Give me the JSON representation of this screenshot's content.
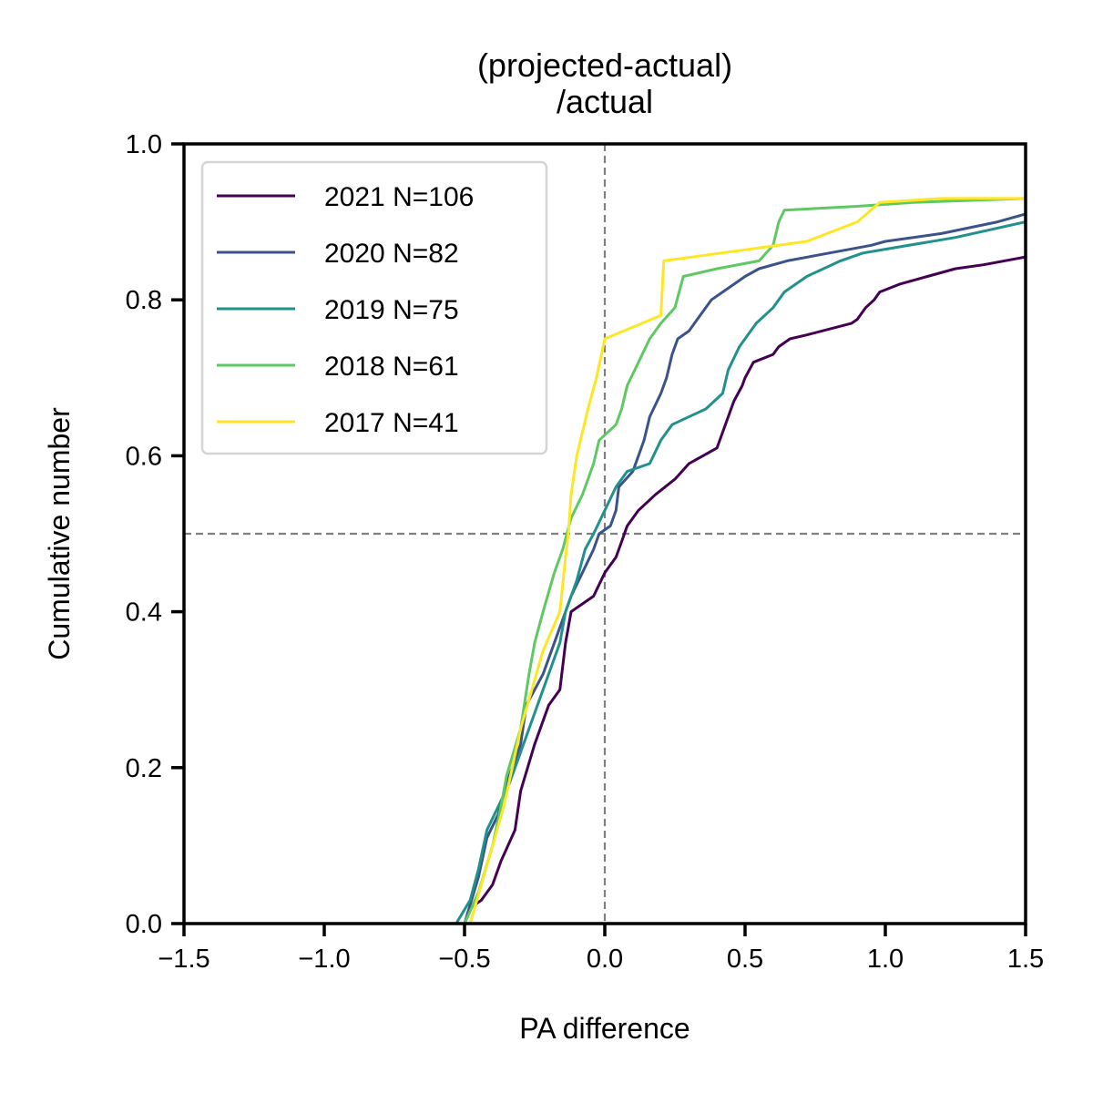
{
  "chart_data": {
    "type": "line",
    "title": "(projected-actual)\n/actual",
    "xlabel": "PA difference",
    "ylabel": "Cumulative number",
    "xlim": [
      -1.5,
      1.5
    ],
    "ylim": [
      0.0,
      1.0
    ],
    "xticks": [
      -1.5,
      -1.0,
      -0.5,
      0.0,
      0.5,
      1.0,
      1.5
    ],
    "xtick_labels": [
      "−1.5",
      "−1.0",
      "−0.5",
      "0.0",
      "0.5",
      "1.0",
      "1.5"
    ],
    "yticks": [
      0.0,
      0.2,
      0.4,
      0.6,
      0.8,
      1.0
    ],
    "ytick_labels": [
      "0.0",
      "0.2",
      "0.4",
      "0.6",
      "0.8",
      "1.0"
    ],
    "grid": false,
    "legend_position": "upper-left",
    "reference_lines": [
      {
        "axis": "x",
        "value": 0.0,
        "style": "dashed",
        "color": "#808080"
      },
      {
        "axis": "y",
        "value": 0.5,
        "style": "dashed",
        "color": "#808080"
      }
    ],
    "series": [
      {
        "name": "2021 N=106",
        "color": "#440154",
        "points": [
          [
            -0.5,
            0.0
          ],
          [
            -0.48,
            0.02
          ],
          [
            -0.44,
            0.03
          ],
          [
            -0.4,
            0.05
          ],
          [
            -0.37,
            0.08
          ],
          [
            -0.32,
            0.12
          ],
          [
            -0.3,
            0.17
          ],
          [
            -0.25,
            0.23
          ],
          [
            -0.2,
            0.28
          ],
          [
            -0.16,
            0.3
          ],
          [
            -0.14,
            0.36
          ],
          [
            -0.12,
            0.4
          ],
          [
            -0.08,
            0.41
          ],
          [
            -0.04,
            0.42
          ],
          [
            0.0,
            0.45
          ],
          [
            0.04,
            0.47
          ],
          [
            0.06,
            0.49
          ],
          [
            0.08,
            0.51
          ],
          [
            0.12,
            0.53
          ],
          [
            0.18,
            0.55
          ],
          [
            0.25,
            0.57
          ],
          [
            0.3,
            0.59
          ],
          [
            0.35,
            0.6
          ],
          [
            0.4,
            0.61
          ],
          [
            0.43,
            0.64
          ],
          [
            0.46,
            0.67
          ],
          [
            0.49,
            0.69
          ],
          [
            0.5,
            0.7
          ],
          [
            0.53,
            0.72
          ],
          [
            0.6,
            0.73
          ],
          [
            0.62,
            0.74
          ],
          [
            0.66,
            0.75
          ],
          [
            0.72,
            0.755
          ],
          [
            0.88,
            0.77
          ],
          [
            0.9,
            0.775
          ],
          [
            0.93,
            0.79
          ],
          [
            0.96,
            0.8
          ],
          [
            0.98,
            0.81
          ],
          [
            1.05,
            0.82
          ],
          [
            1.15,
            0.83
          ],
          [
            1.25,
            0.84
          ],
          [
            1.35,
            0.845
          ],
          [
            1.5,
            0.855
          ]
        ]
      },
      {
        "name": "2020 N=82",
        "color": "#3b528b",
        "points": [
          [
            -0.5,
            0.0
          ],
          [
            -0.45,
            0.06
          ],
          [
            -0.42,
            0.11
          ],
          [
            -0.38,
            0.14
          ],
          [
            -0.35,
            0.18
          ],
          [
            -0.3,
            0.23
          ],
          [
            -0.28,
            0.28
          ],
          [
            -0.22,
            0.32
          ],
          [
            -0.18,
            0.36
          ],
          [
            -0.15,
            0.39
          ],
          [
            -0.12,
            0.42
          ],
          [
            -0.08,
            0.45
          ],
          [
            -0.04,
            0.48
          ],
          [
            -0.02,
            0.5
          ],
          [
            0.02,
            0.51
          ],
          [
            0.04,
            0.53
          ],
          [
            0.05,
            0.56
          ],
          [
            0.1,
            0.58
          ],
          [
            0.12,
            0.6
          ],
          [
            0.14,
            0.62
          ],
          [
            0.16,
            0.65
          ],
          [
            0.2,
            0.68
          ],
          [
            0.22,
            0.7
          ],
          [
            0.24,
            0.73
          ],
          [
            0.26,
            0.75
          ],
          [
            0.3,
            0.76
          ],
          [
            0.34,
            0.78
          ],
          [
            0.38,
            0.8
          ],
          [
            0.42,
            0.81
          ],
          [
            0.46,
            0.82
          ],
          [
            0.5,
            0.83
          ],
          [
            0.55,
            0.84
          ],
          [
            0.65,
            0.85
          ],
          [
            0.8,
            0.86
          ],
          [
            0.95,
            0.87
          ],
          [
            1.0,
            0.875
          ],
          [
            1.2,
            0.885
          ],
          [
            1.4,
            0.9
          ],
          [
            1.5,
            0.91
          ]
        ]
      },
      {
        "name": "2019 N=75",
        "color": "#21918c",
        "points": [
          [
            -0.53,
            0.0
          ],
          [
            -0.48,
            0.03
          ],
          [
            -0.45,
            0.07
          ],
          [
            -0.42,
            0.12
          ],
          [
            -0.38,
            0.15
          ],
          [
            -0.34,
            0.18
          ],
          [
            -0.3,
            0.22
          ],
          [
            -0.25,
            0.27
          ],
          [
            -0.22,
            0.3
          ],
          [
            -0.16,
            0.36
          ],
          [
            -0.14,
            0.4
          ],
          [
            -0.1,
            0.44
          ],
          [
            -0.07,
            0.48
          ],
          [
            -0.04,
            0.5
          ],
          [
            0.0,
            0.53
          ],
          [
            0.04,
            0.56
          ],
          [
            0.08,
            0.58
          ],
          [
            0.16,
            0.59
          ],
          [
            0.2,
            0.62
          ],
          [
            0.24,
            0.64
          ],
          [
            0.36,
            0.66
          ],
          [
            0.42,
            0.68
          ],
          [
            0.44,
            0.71
          ],
          [
            0.48,
            0.74
          ],
          [
            0.54,
            0.77
          ],
          [
            0.6,
            0.79
          ],
          [
            0.64,
            0.81
          ],
          [
            0.72,
            0.83
          ],
          [
            0.84,
            0.85
          ],
          [
            0.92,
            0.86
          ],
          [
            1.0,
            0.865
          ],
          [
            1.25,
            0.88
          ],
          [
            1.5,
            0.9
          ]
        ]
      },
      {
        "name": "2018 N=61",
        "color": "#5ec962",
        "points": [
          [
            -0.5,
            0.0
          ],
          [
            -0.45,
            0.04
          ],
          [
            -0.4,
            0.1
          ],
          [
            -0.37,
            0.15
          ],
          [
            -0.35,
            0.19
          ],
          [
            -0.3,
            0.25
          ],
          [
            -0.27,
            0.32
          ],
          [
            -0.25,
            0.36
          ],
          [
            -0.22,
            0.4
          ],
          [
            -0.18,
            0.45
          ],
          [
            -0.15,
            0.48
          ],
          [
            -0.12,
            0.52
          ],
          [
            -0.08,
            0.55
          ],
          [
            -0.04,
            0.59
          ],
          [
            -0.02,
            0.62
          ],
          [
            0.04,
            0.64
          ],
          [
            0.06,
            0.66
          ],
          [
            0.08,
            0.69
          ],
          [
            0.12,
            0.72
          ],
          [
            0.16,
            0.75
          ],
          [
            0.2,
            0.77
          ],
          [
            0.25,
            0.79
          ],
          [
            0.28,
            0.83
          ],
          [
            0.4,
            0.84
          ],
          [
            0.55,
            0.85
          ],
          [
            0.6,
            0.87
          ],
          [
            0.62,
            0.9
          ],
          [
            0.64,
            0.915
          ],
          [
            0.9,
            0.92
          ],
          [
            1.1,
            0.925
          ],
          [
            1.5,
            0.93
          ]
        ]
      },
      {
        "name": "2017 N=41",
        "color": "#fde725",
        "points": [
          [
            -0.48,
            0.0
          ],
          [
            -0.44,
            0.05
          ],
          [
            -0.4,
            0.1
          ],
          [
            -0.36,
            0.15
          ],
          [
            -0.33,
            0.2
          ],
          [
            -0.3,
            0.25
          ],
          [
            -0.26,
            0.3
          ],
          [
            -0.22,
            0.35
          ],
          [
            -0.16,
            0.4
          ],
          [
            -0.14,
            0.47
          ],
          [
            -0.13,
            0.5
          ],
          [
            -0.12,
            0.55
          ],
          [
            -0.1,
            0.6
          ],
          [
            -0.08,
            0.63
          ],
          [
            -0.06,
            0.66
          ],
          [
            -0.03,
            0.7
          ],
          [
            0.0,
            0.75
          ],
          [
            0.2,
            0.78
          ],
          [
            0.21,
            0.85
          ],
          [
            0.72,
            0.875
          ],
          [
            0.9,
            0.9
          ],
          [
            0.98,
            0.925
          ],
          [
            1.2,
            0.93
          ],
          [
            1.5,
            0.93
          ]
        ]
      }
    ]
  }
}
